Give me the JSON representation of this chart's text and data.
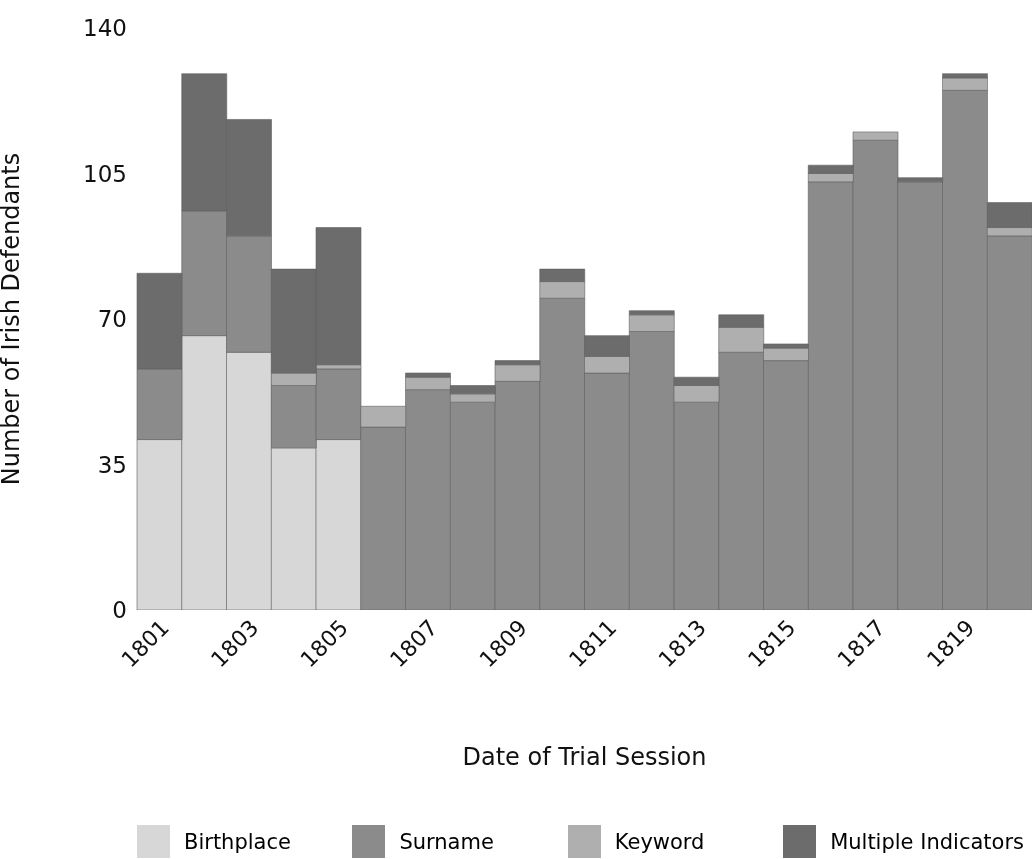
{
  "chart_data": {
    "type": "bar",
    "stacked": true,
    "xlabel": "Date of Trial Session",
    "ylabel": "Number of Irish Defendants",
    "categories": [
      "1801",
      null,
      "1803",
      null,
      "1805",
      null,
      "1807",
      null,
      "1809",
      null,
      "1811",
      null,
      "1813",
      null,
      "1815",
      null,
      "1817",
      null,
      "1819",
      null
    ],
    "series": [
      {
        "name": "Birthplace",
        "color": "#d7d7d7",
        "values": [
          41,
          66,
          62,
          39,
          41,
          0,
          0,
          0,
          0,
          0,
          0,
          0,
          0,
          0,
          0,
          0,
          0,
          0,
          0,
          0
        ]
      },
      {
        "name": "Surname",
        "color": "#8b8b8b",
        "values": [
          17,
          30,
          28,
          15,
          17,
          44,
          53,
          50,
          55,
          75,
          57,
          67,
          50,
          62,
          60,
          103,
          113,
          103,
          125,
          90
        ]
      },
      {
        "name": "Keyword",
        "color": "#afafaf",
        "values": [
          0,
          0,
          0,
          3,
          1,
          5,
          3,
          2,
          4,
          4,
          4,
          4,
          4,
          6,
          3,
          2,
          2,
          0,
          3,
          2
        ]
      },
      {
        "name": "Multiple Indicators",
        "color": "#6c6c6c",
        "values": [
          23,
          33,
          28,
          25,
          33,
          0,
          1,
          2,
          1,
          3,
          5,
          1,
          2,
          3,
          1,
          2,
          0,
          1,
          1,
          6
        ]
      }
    ],
    "ylim": [
      0,
      140
    ],
    "yticks": [
      0,
      35,
      70,
      105,
      140
    ],
    "legend": "bottom"
  }
}
